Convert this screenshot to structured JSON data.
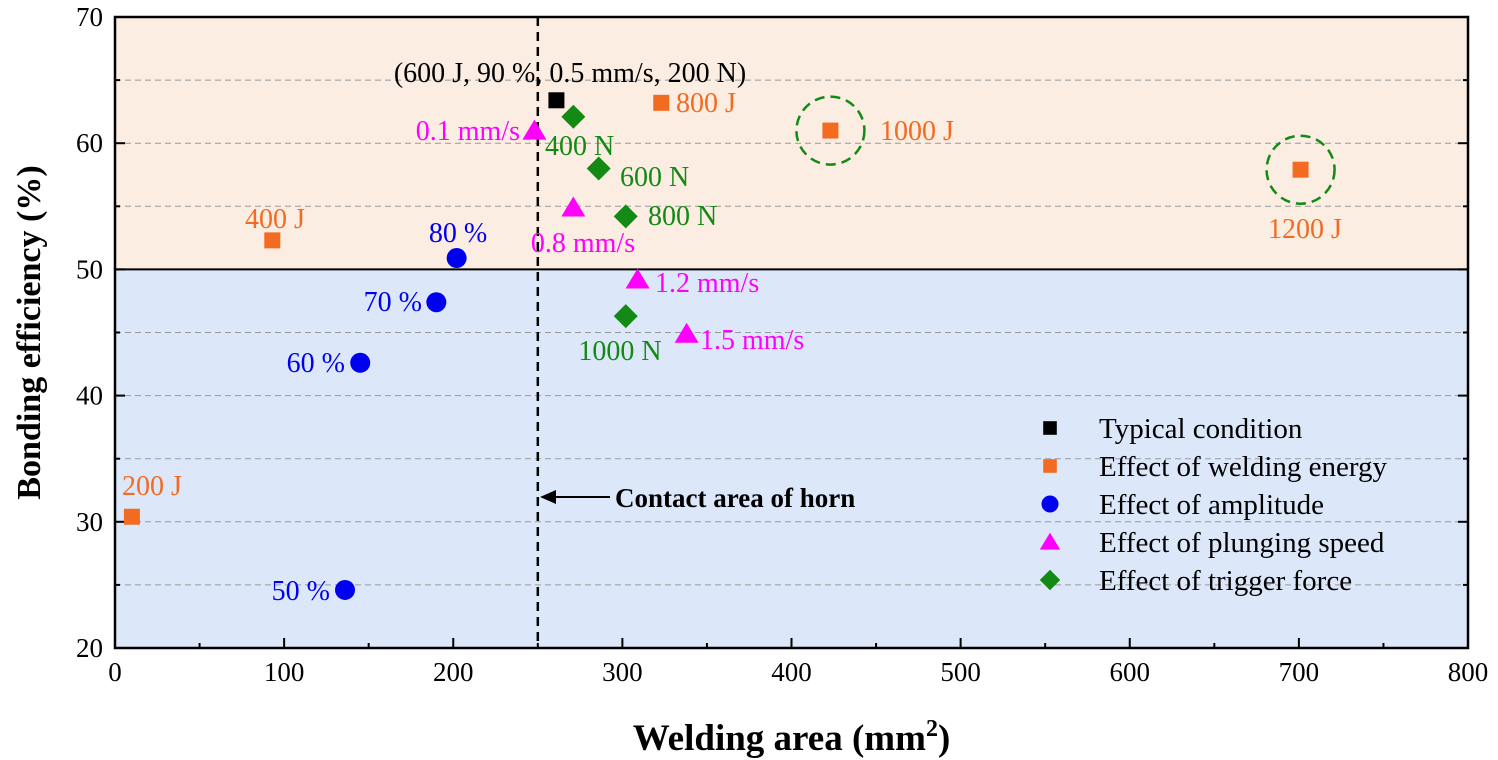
{
  "chart_data": {
    "type": "scatter",
    "xlabel": "Welding area (mm",
    "xlabel_sup": "2",
    "xlabel_end": ")",
    "ylabel": "Bonding efficiency (%)",
    "xlim": [
      0,
      800
    ],
    "ylim": [
      20,
      70
    ],
    "xticks": [
      "0",
      "100",
      "200",
      "300",
      "400",
      "500",
      "600",
      "700",
      "800"
    ],
    "yticks": [
      "20",
      "30",
      "40",
      "50",
      "60",
      "70"
    ],
    "grid": "dashed horizontal every 5",
    "legend_position": "bottom-right",
    "regions": [
      {
        "y_from": 50,
        "y_to": 70,
        "color": "#FCEDE2"
      },
      {
        "y_from": 20,
        "y_to": 50,
        "color": "#DCE8FA"
      }
    ],
    "reference_line": {
      "x": 250,
      "label": "Contact area of horn"
    },
    "highlighted": [
      "1000 J",
      "1200 J"
    ],
    "series": [
      {
        "name": "Typical condition",
        "marker": "square",
        "color": "#000000",
        "points": [
          {
            "x": 261,
            "y": 63.4,
            "label": "(600 J, 90 %, 0.5 mm/s, 200 N)"
          }
        ]
      },
      {
        "name": "Effect of welding energy",
        "marker": "square",
        "color": "#F26B21",
        "points": [
          {
            "x": 10,
            "y": 30.4,
            "label": "200 J"
          },
          {
            "x": 93,
            "y": 52.3,
            "label": "400 J"
          },
          {
            "x": 323,
            "y": 63.2,
            "label": "800 J"
          },
          {
            "x": 423,
            "y": 61.0,
            "label": "1000 J"
          },
          {
            "x": 701,
            "y": 57.9,
            "label": "1200 J"
          }
        ]
      },
      {
        "name": "Effect of amplitude",
        "marker": "circle",
        "color": "#0000F0",
        "points": [
          {
            "x": 136,
            "y": 24.6,
            "label": "50 %"
          },
          {
            "x": 145,
            "y": 42.6,
            "label": "60 %"
          },
          {
            "x": 190,
            "y": 47.4,
            "label": "70 %"
          },
          {
            "x": 202,
            "y": 50.9,
            "label": "80 %"
          }
        ]
      },
      {
        "name": "Effect of plunging speed",
        "marker": "triangle",
        "color": "#FF00FF",
        "points": [
          {
            "x": 248,
            "y": 61.0,
            "label": "0.1 mm/s"
          },
          {
            "x": 271,
            "y": 54.9,
            "label": "0.8 mm/s"
          },
          {
            "x": 309,
            "y": 49.2,
            "label": "1.2 mm/s"
          },
          {
            "x": 338,
            "y": 44.9,
            "label": "1.5 mm/s"
          }
        ]
      },
      {
        "name": "Effect of trigger force",
        "marker": "diamond",
        "color": "#138A13",
        "points": [
          {
            "x": 271,
            "y": 62.1,
            "label": "400 N"
          },
          {
            "x": 286,
            "y": 58.0,
            "label": "600 N"
          },
          {
            "x": 302,
            "y": 54.2,
            "label": "800 N"
          },
          {
            "x": 302,
            "y": 46.3,
            "label": "1000 N"
          }
        ]
      }
    ]
  }
}
